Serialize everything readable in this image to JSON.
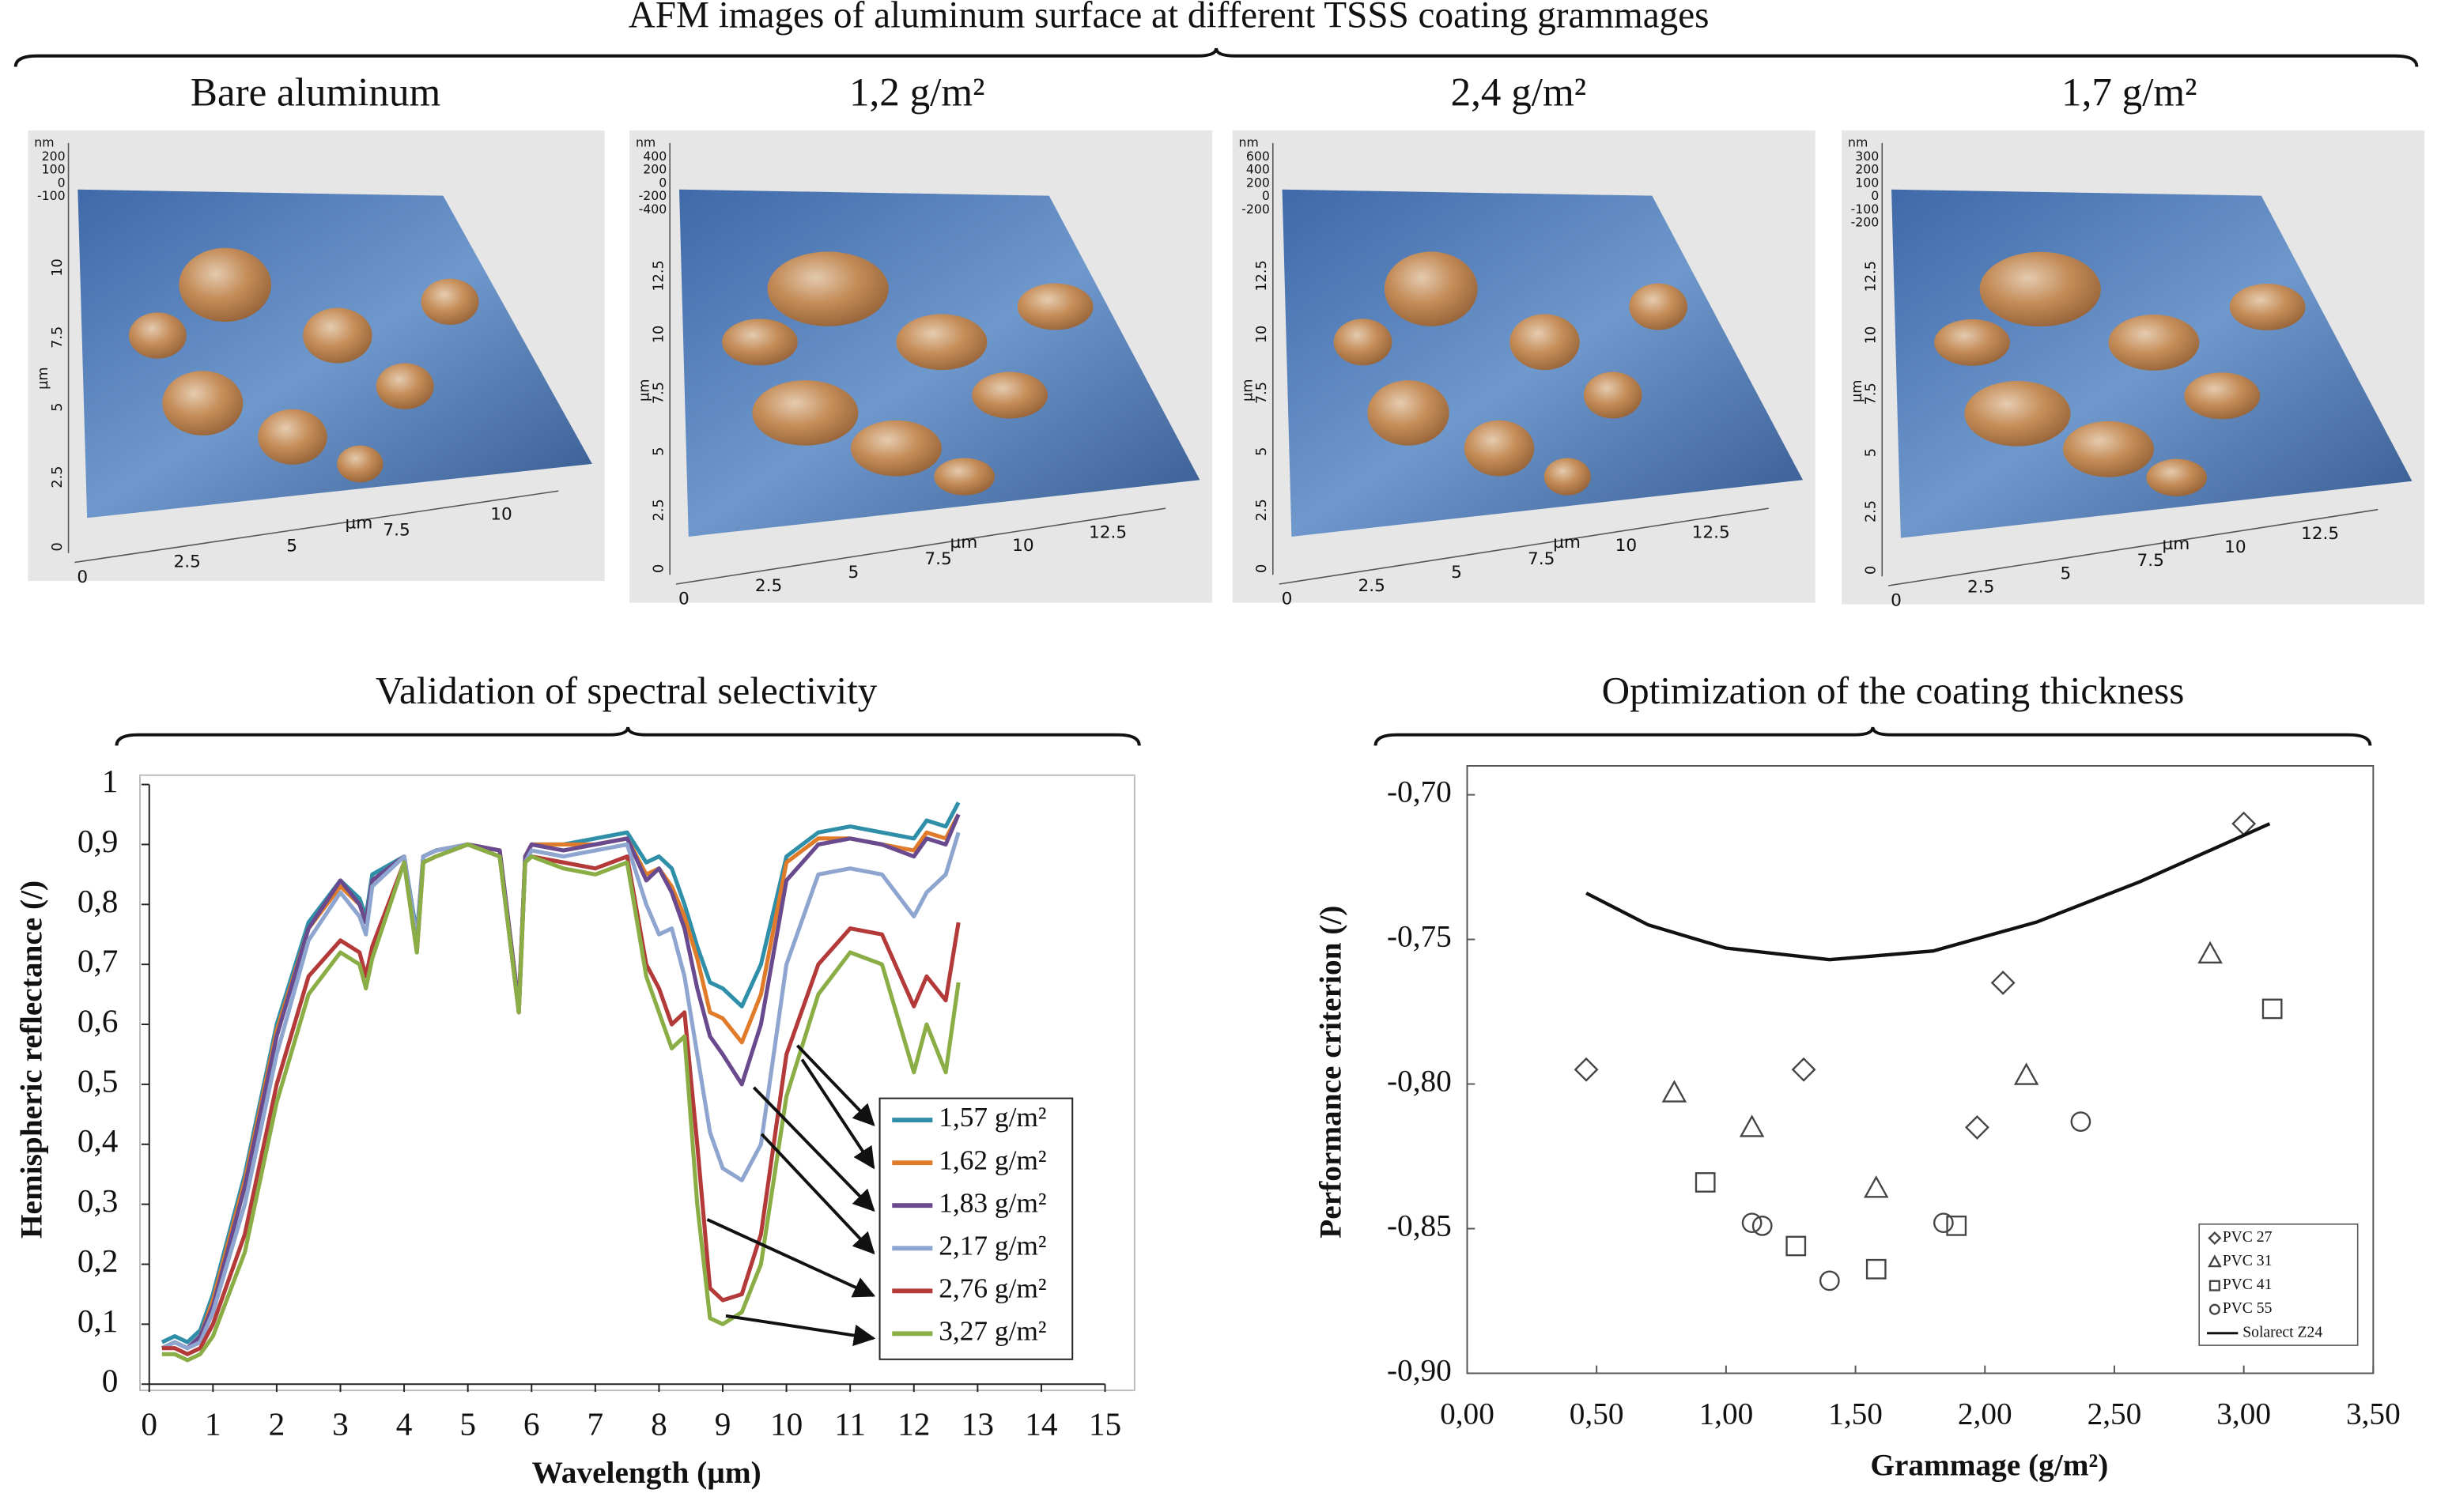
{
  "title": "AFM images of aluminum surface at different TSSS coating grammages",
  "afm": {
    "images": [
      {
        "title": "Bare aluminum",
        "xticks": [
          "0",
          "2.5",
          "5",
          "7.5",
          "10"
        ],
        "yticks": [
          "0",
          "2.5",
          "5",
          "7.5",
          "10"
        ],
        "zticks": [
          "200",
          "100",
          "0",
          "-100"
        ],
        "xlabel": "µm",
        "ylabel": "µm",
        "zlabel": "nm"
      },
      {
        "title": "1,2 g/m²",
        "xticks": [
          "0",
          "2.5",
          "5",
          "7.5",
          "10",
          "12.5"
        ],
        "yticks": [
          "0",
          "2.5",
          "5",
          "7.5",
          "10",
          "12.5"
        ],
        "zticks": [
          "400",
          "200",
          "0",
          "-200",
          "-400"
        ],
        "xlabel": "µm",
        "ylabel": "µm",
        "zlabel": "nm"
      },
      {
        "title": "2,4 g/m²",
        "xticks": [
          "0",
          "2.5",
          "5",
          "7.5",
          "10",
          "12.5"
        ],
        "yticks": [
          "0",
          "2.5",
          "5",
          "7.5",
          "10",
          "12.5"
        ],
        "zticks": [
          "600",
          "400",
          "200",
          "0",
          "-200"
        ],
        "xlabel": "µm",
        "ylabel": "µm",
        "zlabel": "nm"
      },
      {
        "title": "1,7 g/m²",
        "xticks": [
          "0",
          "2.5",
          "5",
          "7.5",
          "10",
          "12.5"
        ],
        "yticks": [
          "0",
          "2.5",
          "5",
          "7.5",
          "10",
          "12.5"
        ],
        "zticks": [
          "300",
          "200",
          "100",
          "0",
          "-100",
          "-200"
        ],
        "xlabel": "µm",
        "ylabel": "µm",
        "zlabel": "nm"
      }
    ]
  },
  "chart_data": [
    {
      "type": "line",
      "title": "Validation of spectral selectivity",
      "xlabel": "Wavelength (µm)",
      "ylabel": "Hemispheric reflectance (/)",
      "xlim": [
        0,
        15
      ],
      "ylim": [
        0,
        1
      ],
      "xticks": [
        0,
        1,
        2,
        3,
        4,
        5,
        6,
        7,
        8,
        9,
        10,
        11,
        12,
        13,
        14,
        15
      ],
      "yticks": [
        0,
        {
          "value": 0.1,
          "label": "0,1"
        },
        {
          "value": 0.2,
          "label": "0,2"
        },
        {
          "value": 0.3,
          "label": "0,3"
        },
        {
          "value": 0.4,
          "label": "0,4"
        },
        {
          "value": 0.5,
          "label": "0,5"
        },
        {
          "value": 0.6,
          "label": "0,6"
        },
        {
          "value": 0.7,
          "label": "0,7"
        },
        {
          "value": 0.8,
          "label": "0,8"
        },
        {
          "value": 0.9,
          "label": "0,9"
        },
        1
      ],
      "grid": false,
      "x": [
        0.2,
        0.4,
        0.6,
        0.8,
        1.0,
        1.5,
        2.0,
        2.5,
        3.0,
        3.3,
        3.4,
        3.5,
        4.0,
        4.2,
        4.3,
        4.5,
        5.0,
        5.5,
        5.8,
        5.9,
        6.0,
        6.5,
        7.0,
        7.5,
        7.8,
        8.0,
        8.2,
        8.4,
        8.6,
        8.8,
        9.0,
        9.3,
        9.6,
        10.0,
        10.5,
        11.0,
        11.5,
        12.0,
        12.2,
        12.5,
        12.7
      ],
      "series": [
        {
          "name": "1,57 g/m²",
          "color": "#2f8fa9",
          "values": [
            0.07,
            0.08,
            0.07,
            0.09,
            0.15,
            0.35,
            0.6,
            0.77,
            0.84,
            0.81,
            0.78,
            0.85,
            0.88,
            0.75,
            0.88,
            0.89,
            0.9,
            0.89,
            0.63,
            0.88,
            0.9,
            0.9,
            0.91,
            0.92,
            0.87,
            0.88,
            0.86,
            0.8,
            0.73,
            0.67,
            0.66,
            0.63,
            0.7,
            0.88,
            0.92,
            0.93,
            0.92,
            0.91,
            0.94,
            0.93,
            0.97
          ]
        },
        {
          "name": "1,62 g/m²",
          "color": "#e07b2a",
          "values": [
            0.06,
            0.07,
            0.06,
            0.08,
            0.14,
            0.34,
            0.59,
            0.76,
            0.83,
            0.8,
            0.77,
            0.84,
            0.88,
            0.74,
            0.88,
            0.89,
            0.9,
            0.89,
            0.63,
            0.88,
            0.9,
            0.9,
            0.9,
            0.91,
            0.85,
            0.86,
            0.83,
            0.78,
            0.71,
            0.62,
            0.61,
            0.57,
            0.65,
            0.87,
            0.91,
            0.91,
            0.9,
            0.89,
            0.92,
            0.91,
            0.95
          ]
        },
        {
          "name": "1,83 g/m²",
          "color": "#6a4a8e",
          "values": [
            0.06,
            0.07,
            0.06,
            0.08,
            0.13,
            0.33,
            0.58,
            0.76,
            0.84,
            0.8,
            0.77,
            0.84,
            0.88,
            0.74,
            0.88,
            0.89,
            0.9,
            0.89,
            0.63,
            0.88,
            0.9,
            0.89,
            0.9,
            0.91,
            0.84,
            0.86,
            0.82,
            0.76,
            0.66,
            0.58,
            0.55,
            0.5,
            0.6,
            0.84,
            0.9,
            0.91,
            0.9,
            0.88,
            0.91,
            0.9,
            0.95
          ]
        },
        {
          "name": "2,17 g/m²",
          "color": "#8ea6cf",
          "values": [
            0.06,
            0.07,
            0.06,
            0.07,
            0.12,
            0.3,
            0.55,
            0.74,
            0.82,
            0.78,
            0.75,
            0.83,
            0.88,
            0.74,
            0.88,
            0.89,
            0.9,
            0.88,
            0.62,
            0.87,
            0.89,
            0.88,
            0.89,
            0.9,
            0.8,
            0.75,
            0.76,
            0.68,
            0.55,
            0.42,
            0.36,
            0.34,
            0.4,
            0.7,
            0.85,
            0.86,
            0.85,
            0.78,
            0.82,
            0.85,
            0.92
          ]
        },
        {
          "name": "2,76 g/m²",
          "color": "#b43a3a",
          "values": [
            0.06,
            0.06,
            0.05,
            0.06,
            0.1,
            0.25,
            0.5,
            0.68,
            0.74,
            0.72,
            0.68,
            0.73,
            0.87,
            0.72,
            0.87,
            0.88,
            0.9,
            0.88,
            0.62,
            0.87,
            0.88,
            0.87,
            0.86,
            0.88,
            0.7,
            0.66,
            0.6,
            0.62,
            0.4,
            0.16,
            0.14,
            0.15,
            0.25,
            0.55,
            0.7,
            0.76,
            0.75,
            0.63,
            0.68,
            0.64,
            0.77
          ]
        },
        {
          "name": "3,27 g/m²",
          "color": "#8aae45",
          "values": [
            0.05,
            0.05,
            0.04,
            0.05,
            0.08,
            0.22,
            0.47,
            0.65,
            0.72,
            0.7,
            0.66,
            0.71,
            0.87,
            0.72,
            0.87,
            0.88,
            0.9,
            0.88,
            0.62,
            0.87,
            0.88,
            0.86,
            0.85,
            0.87,
            0.68,
            0.62,
            0.56,
            0.58,
            0.3,
            0.11,
            0.1,
            0.12,
            0.2,
            0.48,
            0.65,
            0.72,
            0.7,
            0.52,
            0.6,
            0.52,
            0.67
          ]
        }
      ]
    },
    {
      "type": "scatter",
      "title": "Optimization of the coating thickness",
      "xlabel": "Grammage (g/m²)",
      "ylabel": "Performance criterion (/)",
      "xlim": [
        0,
        3.5
      ],
      "ylim": [
        -0.9,
        -0.69
      ],
      "xticks": [
        {
          "value": 0,
          "label": "0,00"
        },
        {
          "value": 0.5,
          "label": "0,50"
        },
        {
          "value": 1,
          "label": "1,00"
        },
        {
          "value": 1.5,
          "label": "1,50"
        },
        {
          "value": 2,
          "label": "2,00"
        },
        {
          "value": 2.5,
          "label": "2,50"
        },
        {
          "value": 3,
          "label": "3,00"
        },
        {
          "value": 3.5,
          "label": "3,50"
        }
      ],
      "yticks": [
        {
          "value": -0.9,
          "label": "-0,90"
        },
        {
          "value": -0.85,
          "label": "-0,85"
        },
        {
          "value": -0.8,
          "label": "-0,80"
        },
        {
          "value": -0.75,
          "label": "-0,75"
        },
        {
          "value": -0.7,
          "label": "-0,70"
        }
      ],
      "grid": false,
      "legend": "bottom-right",
      "series": [
        {
          "name": "PVC 27",
          "marker": "diamond",
          "color": "#444444",
          "x": [
            0.46,
            1.3,
            1.97,
            2.07,
            3.0
          ],
          "values": [
            -0.795,
            -0.795,
            -0.815,
            -0.765,
            -0.71
          ]
        },
        {
          "name": "PVC 31",
          "marker": "triangle",
          "color": "#444444",
          "x": [
            0.8,
            1.1,
            1.58,
            2.16,
            2.87
          ],
          "values": [
            -0.803,
            -0.815,
            -0.836,
            -0.797,
            -0.755
          ]
        },
        {
          "name": "PVC 41",
          "marker": "square",
          "color": "#444444",
          "x": [
            0.92,
            1.27,
            1.58,
            1.89,
            3.11
          ],
          "values": [
            -0.834,
            -0.856,
            -0.864,
            -0.849,
            -0.774
          ]
        },
        {
          "name": "PVC 55",
          "marker": "circle",
          "color": "#444444",
          "x": [
            1.1,
            1.14,
            1.4,
            1.84,
            2.37
          ],
          "values": [
            -0.848,
            -0.849,
            -0.868,
            -0.848,
            -0.813
          ]
        },
        {
          "name": "Solarect Z24",
          "marker": "line",
          "color": "#111111",
          "x": [
            0.46,
            0.7,
            1.0,
            1.4,
            1.8,
            2.2,
            2.6,
            3.1
          ],
          "values": [
            -0.734,
            -0.745,
            -0.753,
            -0.757,
            -0.754,
            -0.744,
            -0.73,
            -0.71
          ]
        }
      ]
    }
  ]
}
